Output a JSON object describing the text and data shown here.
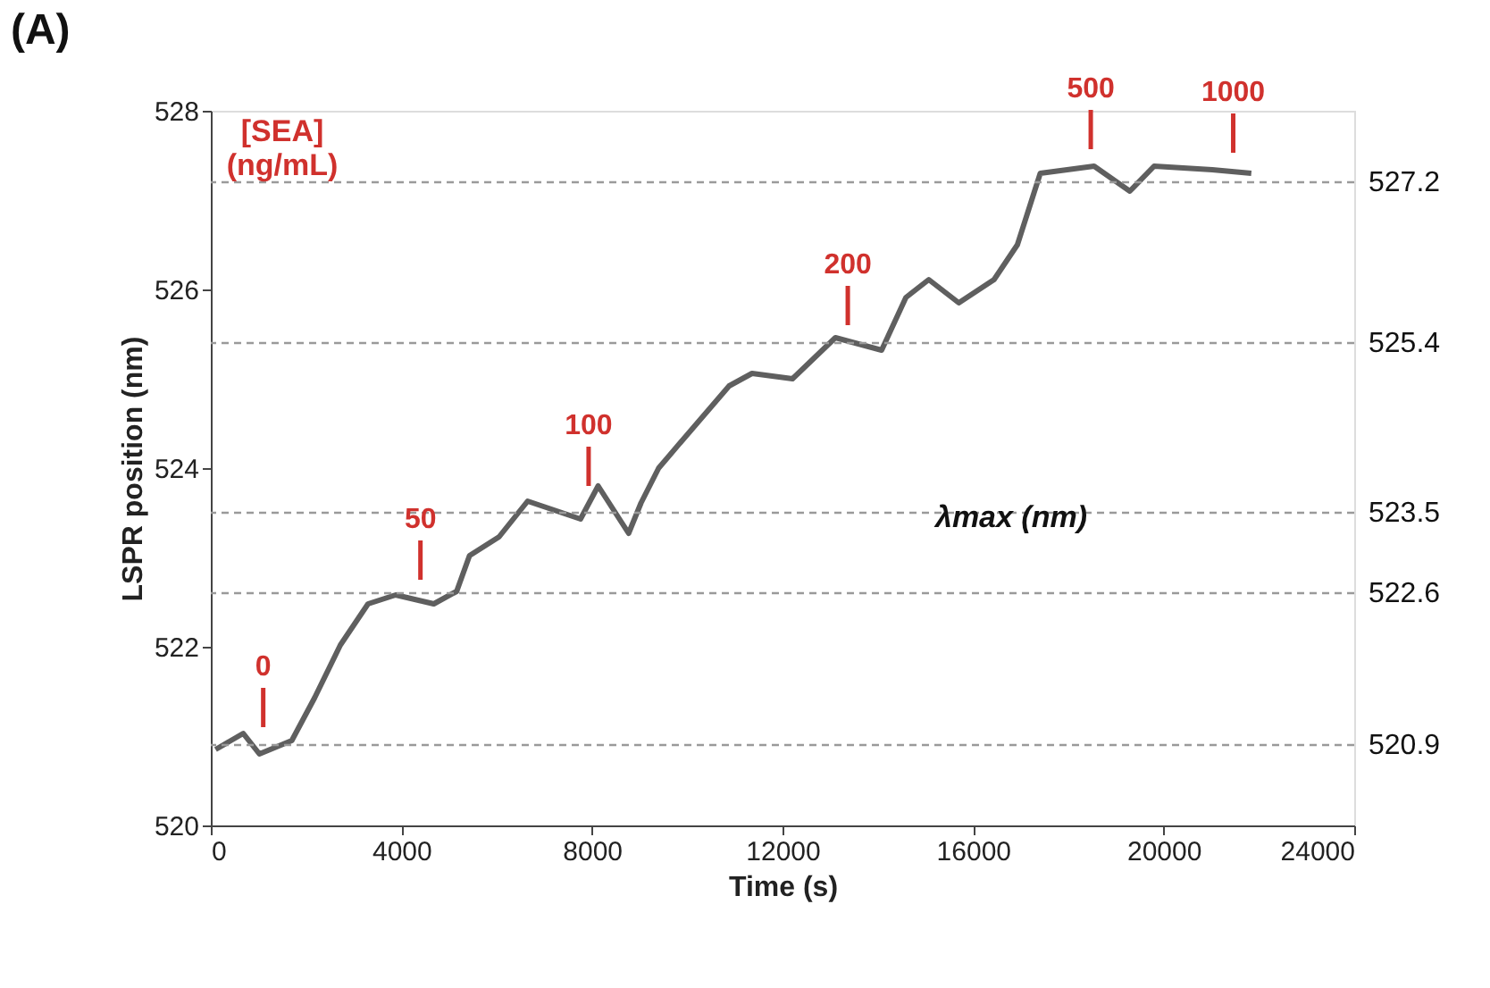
{
  "chart_data": {
    "type": "line",
    "title": "(A)",
    "xlabel": "Time (s)",
    "ylabel": "LSPR position (nm)",
    "xlim": [
      0,
      24000
    ],
    "xticks": [
      0,
      4000,
      8000,
      12000,
      16000,
      20000,
      24000
    ],
    "ylim": [
      520,
      528
    ],
    "yticks": [
      520,
      522,
      524,
      526,
      528
    ],
    "grid": false,
    "series": [
      {
        "color": "#5f5f5f",
        "x": [
          100,
          680,
          1020,
          1700,
          2180,
          2720,
          3300,
          3880,
          4680,
          5160,
          5430,
          6050,
          6650,
          7760,
          8130,
          8770,
          9030,
          9400,
          9880,
          10880,
          11360,
          12210,
          13110,
          14080,
          14590,
          15070,
          15700,
          16440,
          16930,
          17410,
          18540,
          19290,
          19800,
          21020,
          21840
        ],
        "values": [
          520.85,
          521.03,
          520.8,
          520.95,
          521.43,
          522.02,
          522.48,
          522.58,
          522.48,
          522.62,
          523.02,
          523.23,
          523.63,
          523.43,
          523.8,
          523.27,
          523.61,
          524.0,
          524.3,
          524.92,
          525.06,
          525.0,
          525.46,
          525.32,
          525.91,
          526.11,
          525.85,
          526.11,
          526.5,
          527.3,
          527.38,
          527.1,
          527.38,
          527.34,
          527.3
        ]
      }
    ],
    "ref_lines": [
      {
        "axis": "y",
        "value": 520.9,
        "label": "520.9",
        "line_style": "dashed",
        "color": "#9a9a9a"
      },
      {
        "axis": "y",
        "value": 522.6,
        "label": "522.6",
        "line_style": "dashed",
        "color": "#9a9a9a"
      },
      {
        "axis": "y",
        "value": 523.5,
        "label": "523.5",
        "line_style": "dashed",
        "color": "#9a9a9a"
      },
      {
        "axis": "y",
        "value": 525.4,
        "label": "525.4",
        "line_style": "dashed",
        "color": "#9a9a9a"
      },
      {
        "axis": "y",
        "value": 527.2,
        "label": "527.2",
        "line_style": "dashed",
        "color": "#9a9a9a"
      }
    ],
    "annotations": [
      "[SEA]\n(ng/mL)",
      "λmax (nm)",
      {
        "text": "0",
        "x": 1100,
        "y": 520.9
      },
      {
        "text": "50",
        "x": 4400,
        "y": 522.55
      },
      {
        "text": "100",
        "x": 7930,
        "y": 523.6
      },
      {
        "text": "200",
        "x": 13370,
        "y": 525.4
      },
      {
        "text": "500",
        "x": 18470,
        "y": 527.37
      },
      {
        "text": "1000",
        "x": 21460,
        "y": 527.33
      }
    ]
  }
}
